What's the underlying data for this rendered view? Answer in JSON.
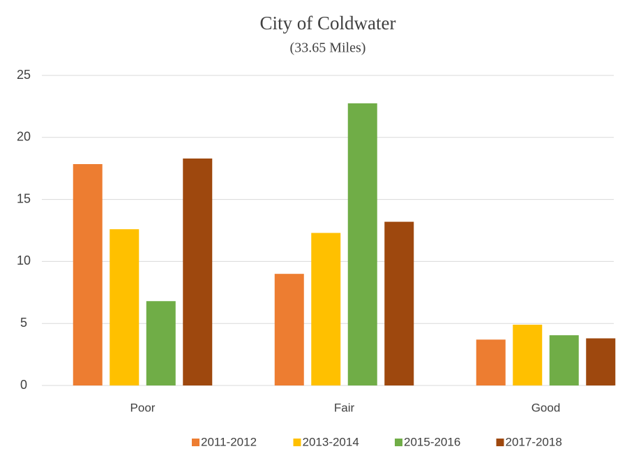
{
  "chart_data": {
    "type": "bar",
    "title": "City of Coldwater",
    "subtitle": "(33.65 Miles)",
    "categories": [
      "Poor",
      "Fair",
      "Good"
    ],
    "series": [
      {
        "name": "2011-2012",
        "color": "#ed7d31",
        "values": [
          17.85,
          9.0,
          3.7
        ]
      },
      {
        "name": "2013-2014",
        "color": "#ffc000",
        "values": [
          12.6,
          12.3,
          4.9
        ]
      },
      {
        "name": "2015-2016",
        "color": "#70ad47",
        "values": [
          6.8,
          22.75,
          4.05
        ]
      },
      {
        "name": "2017-2018",
        "color": "#9e480e",
        "values": [
          18.3,
          13.2,
          3.8
        ]
      }
    ],
    "ylim": [
      0,
      25
    ],
    "yticks": [
      0,
      5,
      10,
      15,
      20,
      25
    ],
    "grid": true,
    "legend": "bottom"
  }
}
